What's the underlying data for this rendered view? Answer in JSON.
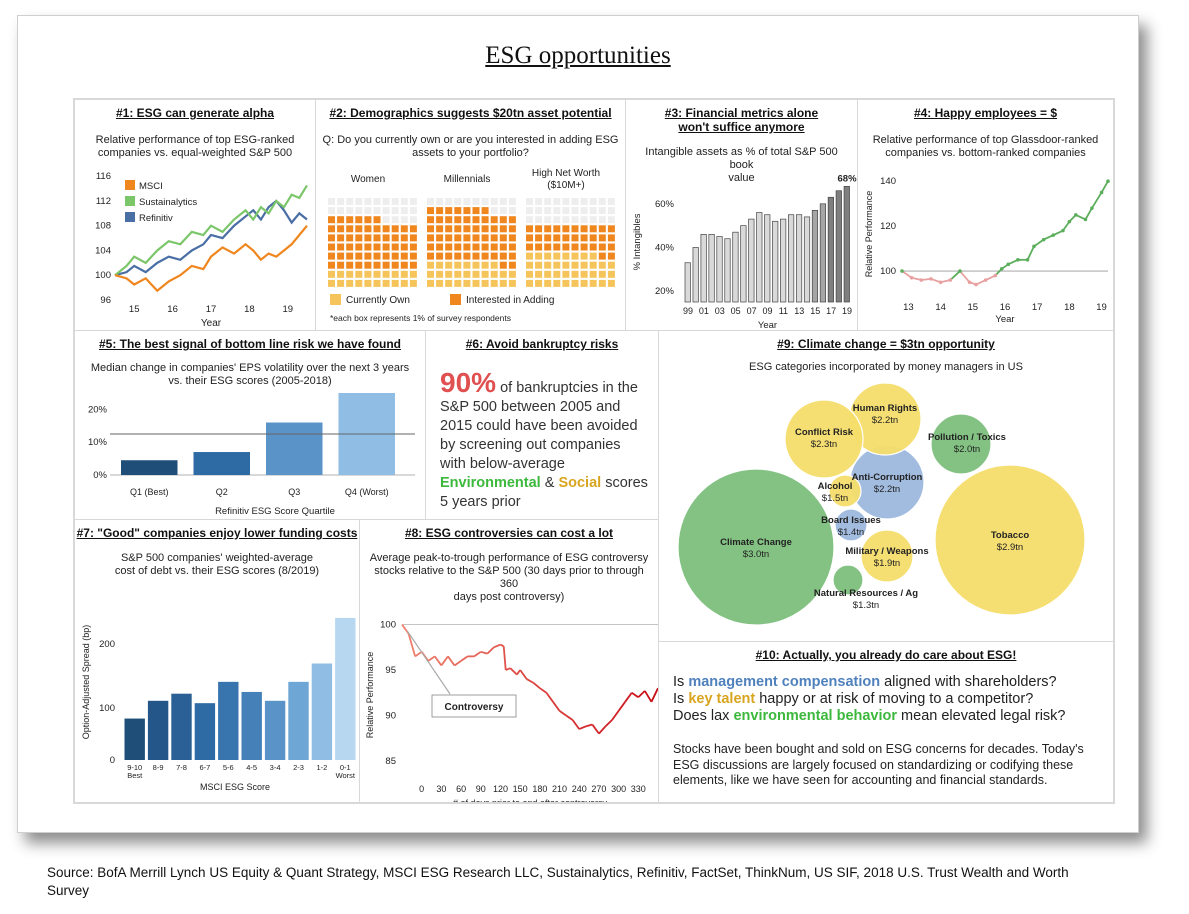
{
  "title": "ESG opportunities",
  "source": "Source: BofA Merrill Lynch US Equity & Quant Strategy, MSCI ESG Research LLC, Sustainalytics, Refinitiv, FactSet, ThinkNum, US SIF, 2018 U.S. Trust Wealth and Worth Survey",
  "panel6": {
    "title": "#6: Avoid bankruptcy risks",
    "big": "90%",
    "t1": " of bankruptcies in the S&P 500 between 2005 and 2015 could have been avoided by screening out companies with below-average ",
    "env": "Environmental",
    "amp": " & ",
    "soc": "Social",
    "t2": " scores 5 years prior"
  },
  "panel10": {
    "title": "#10: Actually, you already do care about ESG!",
    "q1a": "Is ",
    "q1b": "management compensation",
    "q1c": " aligned with shareholders?",
    "q2a": "Is ",
    "q2b": "key talent",
    "q2c": " happy or at risk of moving to a competitor?",
    "q3a": "Does lax ",
    "q3b": "environmental behavior",
    "q3c": " mean elevated legal risk?",
    "para": "Stocks have been bought and sold on ESG concerns for decades. Today's ESG discussions are largely focused on standardizing or codifying these elements, like we have seen for accounting and financial standards."
  },
  "chart_data": [
    {
      "id": "p1",
      "type": "line",
      "title": "#1: ESG can generate alpha",
      "subtitle1": "Relative performance of top ESG-ranked",
      "subtitle2": "companies vs. equal-weighted S&P 500",
      "xlabel": "Year",
      "xticks": [
        "15",
        "16",
        "17",
        "18",
        "19"
      ],
      "yticks": [
        "96",
        "100",
        "104",
        "108",
        "112",
        "116"
      ],
      "ylim": [
        96,
        117
      ],
      "xlim": [
        14.5,
        19.5
      ],
      "series": [
        {
          "name": "MSCI",
          "color": "#f0861e",
          "points": [
            [
              14.5,
              100
            ],
            [
              14.8,
              99.5
            ],
            [
              15.0,
              98.5
            ],
            [
              15.3,
              99.5
            ],
            [
              15.6,
              97.5
            ],
            [
              15.9,
              99
            ],
            [
              16.2,
              100
            ],
            [
              16.5,
              101.5
            ],
            [
              16.8,
              101
            ],
            [
              17.0,
              103
            ],
            [
              17.3,
              104.5
            ],
            [
              17.6,
              103.5
            ],
            [
              17.9,
              105
            ],
            [
              18.1,
              104
            ],
            [
              18.3,
              102.5
            ],
            [
              18.5,
              103.5
            ],
            [
              18.7,
              103
            ],
            [
              18.9,
              104
            ],
            [
              19.1,
              105
            ],
            [
              19.3,
              106.5
            ],
            [
              19.5,
              108
            ]
          ]
        },
        {
          "name": "Sustainalytics",
          "color": "#7cc66a",
          "points": [
            [
              14.5,
              100
            ],
            [
              14.8,
              101.5
            ],
            [
              15.0,
              103
            ],
            [
              15.3,
              102
            ],
            [
              15.6,
              104
            ],
            [
              15.9,
              105.5
            ],
            [
              16.2,
              105
            ],
            [
              16.5,
              107
            ],
            [
              16.8,
              106.5
            ],
            [
              17.0,
              108
            ],
            [
              17.3,
              107
            ],
            [
              17.6,
              109
            ],
            [
              17.9,
              110.5
            ],
            [
              18.1,
              109
            ],
            [
              18.3,
              111
            ],
            [
              18.5,
              110
            ],
            [
              18.7,
              112
            ],
            [
              18.9,
              111
            ],
            [
              19.1,
              113
            ],
            [
              19.3,
              112.5
            ],
            [
              19.5,
              114.5
            ]
          ]
        },
        {
          "name": "Refinitiv",
          "color": "#4a6fa5",
          "points": [
            [
              14.5,
              100
            ],
            [
              14.8,
              100.5
            ],
            [
              15.0,
              101.5
            ],
            [
              15.3,
              100.5
            ],
            [
              15.6,
              102
            ],
            [
              15.9,
              103
            ],
            [
              16.2,
              102.5
            ],
            [
              16.5,
              104
            ],
            [
              16.8,
              105
            ],
            [
              17.0,
              106.5
            ],
            [
              17.3,
              106
            ],
            [
              17.6,
              108
            ],
            [
              17.9,
              109.5
            ],
            [
              18.1,
              110.5
            ],
            [
              18.3,
              109
            ],
            [
              18.5,
              111
            ],
            [
              18.7,
              112
            ],
            [
              18.9,
              110.5
            ],
            [
              19.1,
              108.5
            ],
            [
              19.3,
              110
            ],
            [
              19.5,
              109
            ]
          ]
        }
      ]
    },
    {
      "id": "p2",
      "type": "waffle",
      "title": "#2: Demographics suggests $20tn asset potential",
      "subtitle1": "Q: Do you currently own or are you interested in adding ESG",
      "subtitle2": "assets to your portfolio?",
      "groups": [
        {
          "label": "Women",
          "own": 20,
          "interested": 56
        },
        {
          "label": "Millennials",
          "own": 28,
          "interested": 59
        },
        {
          "label": "High Net Worth ($10M+)",
          "own": 38,
          "interested": 32
        }
      ],
      "legend": [
        "Currently Own",
        "Interested in Adding"
      ],
      "colors": {
        "own": "#f5c45a",
        "interested": "#f0861e",
        "none": "#eeeeee"
      },
      "footnote": "*each box represents 1% of survey respondents"
    },
    {
      "id": "p3",
      "type": "bar",
      "title1": "#3: Financial metrics alone",
      "title2": "won't suffice anymore",
      "subtitle1": "Intangible assets as % of total S&P 500 book",
      "subtitle2": "value",
      "ylabel": "% Intangibles",
      "xlabel": "Year",
      "yticks": [
        "20%",
        "40%",
        "60%"
      ],
      "ylim": [
        15,
        70
      ],
      "xticks": [
        "99",
        "01",
        "03",
        "05",
        "07",
        "09",
        "11",
        "13",
        "15",
        "17",
        "19"
      ],
      "values": [
        33,
        40,
        46,
        46,
        45,
        44,
        47,
        50,
        53,
        56,
        55,
        52,
        53,
        55,
        55,
        54,
        57,
        60,
        63,
        66,
        68
      ],
      "callout": "68%"
    },
    {
      "id": "p4",
      "type": "line",
      "title": "#4: Happy employees = $",
      "subtitle1": "Relative performance of top Glassdoor-ranked",
      "subtitle2": "companies vs. bottom-ranked companies",
      "ylabel": "Relative Performance",
      "xlabel": "Year",
      "xticks": [
        "13",
        "14",
        "15",
        "16",
        "17",
        "18",
        "19"
      ],
      "yticks": [
        "100",
        "120",
        "140"
      ],
      "ylim": [
        88,
        145
      ],
      "xlim": [
        12.8,
        19.2
      ],
      "points": [
        [
          12.8,
          100
        ],
        [
          13.1,
          97
        ],
        [
          13.4,
          96
        ],
        [
          13.7,
          96.5
        ],
        [
          14.0,
          95
        ],
        [
          14.3,
          96
        ],
        [
          14.6,
          100
        ],
        [
          14.9,
          95
        ],
        [
          15.1,
          94
        ],
        [
          15.4,
          96
        ],
        [
          15.7,
          98
        ],
        [
          15.9,
          101
        ],
        [
          16.1,
          103
        ],
        [
          16.4,
          105
        ],
        [
          16.7,
          105
        ],
        [
          16.9,
          111
        ],
        [
          17.2,
          114
        ],
        [
          17.5,
          116
        ],
        [
          17.8,
          118
        ],
        [
          18.0,
          122
        ],
        [
          18.2,
          125
        ],
        [
          18.5,
          123
        ],
        [
          18.7,
          128
        ],
        [
          19.0,
          135
        ],
        [
          19.2,
          140
        ]
      ]
    },
    {
      "id": "p5",
      "type": "bar",
      "title": "#5: The best signal of bottom line risk we have found",
      "subtitle1": "Median change in companies' EPS volatility over the next 3 years",
      "subtitle2": "vs. their ESG scores (2005-2018)",
      "xlabel": "Refinitiv ESG Score Quartile",
      "categories": [
        "Q1 (Best)",
        "Q2",
        "Q3",
        "Q4 (Worst)"
      ],
      "values": [
        4.5,
        7,
        16,
        25
      ],
      "yticks": [
        "0%",
        "10%",
        "20%"
      ],
      "ylim": [
        0,
        25
      ],
      "avg_line": 12.5,
      "colors": [
        "#1f4e79",
        "#2e6aa3",
        "#5a93c8",
        "#8fbde4"
      ]
    },
    {
      "id": "p7",
      "type": "bar",
      "title": "#7: \"Good\" companies enjoy lower funding costs",
      "subtitle1": "S&P 500 companies' weighted-average",
      "subtitle2": "cost of debt vs. their ESG scores (8/2019)",
      "ylabel": "Option-Adjusted Spread (bp)",
      "xlabel": "MSCI ESG Score",
      "categories": [
        "9-10",
        "8-9",
        "7-8",
        "6-7",
        "5-6",
        "4-5",
        "3-4",
        "2-3",
        "1-2",
        "0-1"
      ],
      "sublabels": [
        "Best",
        "",
        "",
        "",
        "",
        "",
        "",
        "",
        "",
        "Worst"
      ],
      "values": [
        70,
        100,
        112,
        96,
        132,
        115,
        100,
        132,
        163,
        240
      ],
      "yticks": [
        "0",
        "100",
        "200"
      ],
      "ylim": [
        0,
        250
      ],
      "colors": [
        "#1f4e79",
        "#24568a",
        "#2a6095",
        "#2e6aa3",
        "#3874ad",
        "#4580b8",
        "#5a93c8",
        "#6ea6d6",
        "#8fbde4",
        "#b7d7f0"
      ]
    },
    {
      "id": "p8",
      "type": "line",
      "title": "#8: ESG controversies can cost a lot",
      "subtitle1": "Average peak-to-trough performance of ESG controversy",
      "subtitle2": "stocks relative to the S&P 500 (30 days prior to through 360",
      "subtitle3": "days post controversy)",
      "ylabel": "Relative Performance",
      "xlabel": "# of days prior to and after controversy",
      "xticks": [
        "0",
        "30",
        "60",
        "90",
        "120",
        "150",
        "180",
        "210",
        "240",
        "270",
        "300",
        "330"
      ],
      "yticks": [
        "85",
        "90",
        "95",
        "100"
      ],
      "ylim": [
        84,
        100.5
      ],
      "xlim": [
        -30,
        360
      ],
      "annotation": "Controversy",
      "points": [
        [
          -30,
          100
        ],
        [
          -20,
          99
        ],
        [
          -10,
          96.5
        ],
        [
          0,
          97
        ],
        [
          10,
          96
        ],
        [
          20,
          96.5
        ],
        [
          30,
          95.5
        ],
        [
          40,
          96.5
        ],
        [
          50,
          95.5
        ],
        [
          60,
          96
        ],
        [
          70,
          96.5
        ],
        [
          80,
          96.5
        ],
        [
          90,
          97
        ],
        [
          100,
          96.8
        ],
        [
          110,
          97.5
        ],
        [
          120,
          97.8
        ],
        [
          125,
          97.6
        ],
        [
          128,
          95
        ],
        [
          135,
          95.2
        ],
        [
          145,
          94.5
        ],
        [
          150,
          95
        ],
        [
          160,
          94
        ],
        [
          170,
          93.6
        ],
        [
          180,
          93
        ],
        [
          190,
          92.5
        ],
        [
          200,
          91.5
        ],
        [
          210,
          90.5
        ],
        [
          220,
          90
        ],
        [
          230,
          89.5
        ],
        [
          240,
          88.5
        ],
        [
          250,
          88.8
        ],
        [
          260,
          89
        ],
        [
          270,
          88
        ],
        [
          280,
          88.8
        ],
        [
          290,
          89.5
        ],
        [
          300,
          90.5
        ],
        [
          310,
          91.5
        ],
        [
          320,
          92.5
        ],
        [
          330,
          92
        ],
        [
          340,
          92.7
        ],
        [
          350,
          91.5
        ],
        [
          360,
          93
        ]
      ]
    },
    {
      "id": "p9",
      "type": "bubble",
      "title": "#9: Climate change = $3tn opportunity",
      "subtitle": "ESG categories incorporated by money managers in US",
      "bubbles": [
        {
          "name": "Climate Change",
          "value": "$3.0tn",
          "color": "#7cbf7c"
        },
        {
          "name": "Tobacco",
          "value": "$2.9tn",
          "color": "#f5dd6a"
        },
        {
          "name": "Anti-Corruption",
          "value": "$2.2tn",
          "color": "#9db8de"
        },
        {
          "name": "Human Rights",
          "value": "$2.2tn",
          "color": "#f5dd6a"
        },
        {
          "name": "Conflict Risk",
          "value": "$2.3tn",
          "color": "#f5dd6a"
        },
        {
          "name": "Pollution / Toxics",
          "value": "$2.0tn",
          "color": "#7cbf7c"
        },
        {
          "name": "Alcohol",
          "value": "$1.5tn",
          "color": "#f5dd6a"
        },
        {
          "name": "Board Issues",
          "value": "$1.4tn",
          "color": "#9db8de"
        },
        {
          "name": "Military / Weapons",
          "value": "$1.9tn",
          "color": "#f5dd6a"
        },
        {
          "name": "Natural Resources / Ag",
          "value": "$1.3tn",
          "color": "#7cbf7c"
        }
      ]
    }
  ]
}
